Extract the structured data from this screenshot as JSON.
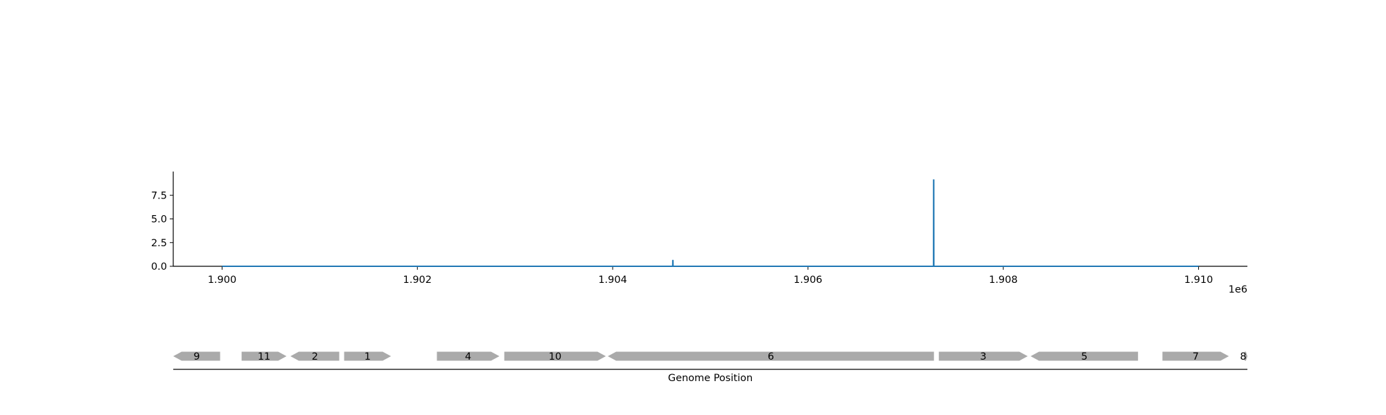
{
  "chart_data": {
    "type": "line",
    "title": "",
    "series": [
      {
        "color": "#1f77b4",
        "x": [
          1900000,
          1904615,
          1904616,
          1904617,
          1904618,
          1907286,
          1907287,
          1907288,
          1907289,
          1910000
        ],
        "y": [
          0.0,
          0.0,
          0.6,
          0.6,
          0.0,
          0.0,
          9.1,
          9.1,
          0.0,
          0.0
        ]
      }
    ],
    "xlim": [
      1899500,
      1910500
    ],
    "ylim": [
      0,
      10
    ],
    "x_ticks": [
      1900000,
      1902000,
      1904000,
      1906000,
      1908000,
      1910000
    ],
    "x_tick_labels": [
      "1.900",
      "1.902",
      "1.904",
      "1.906",
      "1.908",
      "1.910"
    ],
    "x_offset_label": "1e6",
    "y_ticks": [
      0,
      2.5,
      5,
      7.5
    ],
    "y_tick_labels": [
      "0.0",
      "2.5",
      "5.0",
      "7.5"
    ],
    "genes_track": {
      "xlabel": "Genome Position",
      "color": "#aaaaaa",
      "genes": [
        {
          "label": "9",
          "start": 1899500,
          "end": 1899980,
          "strand": "-"
        },
        {
          "label": "11",
          "start": 1900200,
          "end": 1900660,
          "strand": "+"
        },
        {
          "label": "2",
          "start": 1900700,
          "end": 1901200,
          "strand": "-"
        },
        {
          "label": "1",
          "start": 1901250,
          "end": 1901730,
          "strand": "+"
        },
        {
          "label": "4",
          "start": 1902200,
          "end": 1902840,
          "strand": "+"
        },
        {
          "label": "10",
          "start": 1902890,
          "end": 1903930,
          "strand": "+"
        },
        {
          "label": "6",
          "start": 1903950,
          "end": 1907290,
          "strand": "-"
        },
        {
          "label": "3",
          "start": 1907340,
          "end": 1908250,
          "strand": "+"
        },
        {
          "label": "5",
          "start": 1908280,
          "end": 1909380,
          "strand": "-"
        },
        {
          "label": "7",
          "start": 1909630,
          "end": 1910310,
          "strand": "+"
        },
        {
          "label": "8",
          "start": 1910470,
          "end": 1910500,
          "strand": "+"
        }
      ]
    }
  }
}
